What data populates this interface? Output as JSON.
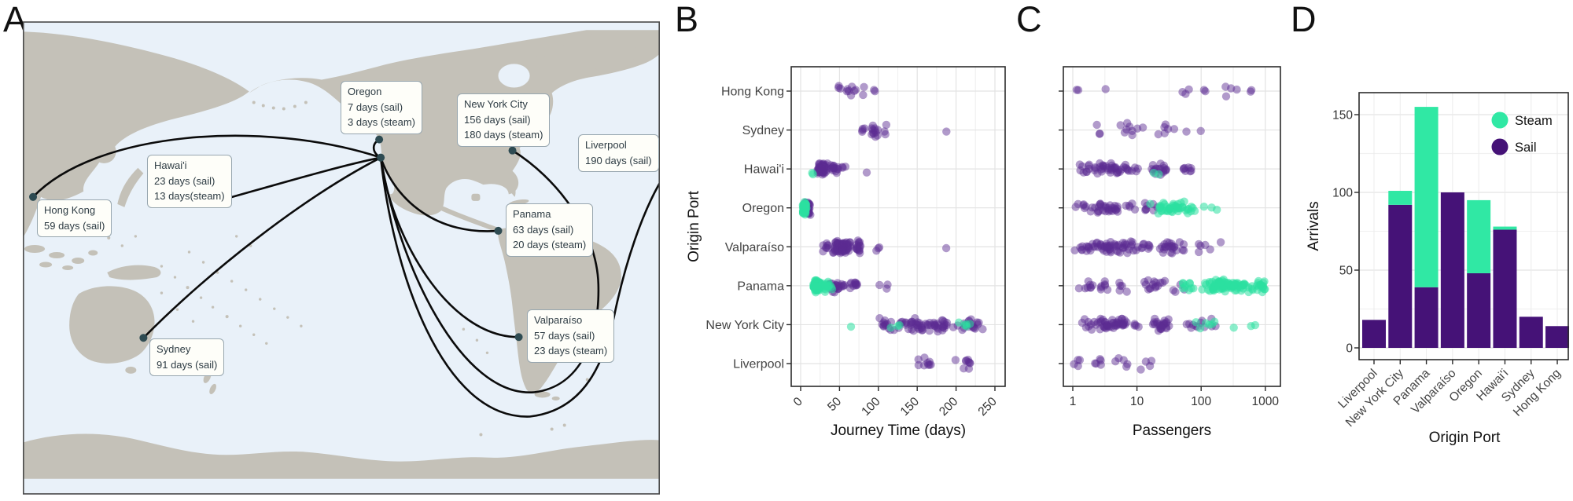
{
  "panels": {
    "a": "A",
    "b": "B",
    "c": "C",
    "d": "D"
  },
  "colors": {
    "sail": "#451277",
    "steam": "#30E8A4",
    "sail_point": "#5B2C92",
    "steam_point": "#2BE0A0",
    "ocean": "#E9F1F9",
    "land": "#C4C1B8",
    "route": "#0B0B0B",
    "port_dot": "#2E4B52",
    "frame": "#2B2B2B",
    "grid_major": "#E3E3E3",
    "grid_minor": "#F1F1F1",
    "text": "#333333"
  },
  "map": {
    "ports": [
      {
        "id": "oregon",
        "name": "Oregon",
        "line1": "7 days (sail)",
        "line2": "3 days (steam)"
      },
      {
        "id": "new-york-city",
        "name": "New York City",
        "line1": "156 days (sail)",
        "line2": "180 days (steam)"
      },
      {
        "id": "liverpool",
        "name": "Liverpool",
        "line1": "190 days (sail)"
      },
      {
        "id": "hawaii",
        "name": "Hawai'i",
        "line1": "23 days (sail)",
        "line2": "13 days(steam)"
      },
      {
        "id": "hong-kong",
        "name": "Hong Kong",
        "line1": "59 days (sail)"
      },
      {
        "id": "panama",
        "name": "Panama",
        "line1": "63 days (sail)",
        "line2": "20 days (steam)"
      },
      {
        "id": "valparaiso",
        "name": "Valparaíso",
        "line1": "57 days (sail)",
        "line2": "23 days (steam)"
      },
      {
        "id": "sydney",
        "name": "Sydney",
        "line1": "91 days (sail)"
      }
    ]
  },
  "chart_data": [
    {
      "id": "B",
      "type": "scatter",
      "subtype": "jitter-strip",
      "xlabel": "Journey Time (days)",
      "ylabel": "Origin Port",
      "xscale": "linear",
      "xticks": [
        0,
        50,
        100,
        150,
        200,
        250
      ],
      "xlim": [
        -12,
        263
      ],
      "categories": [
        "Hong Kong",
        "Sydney",
        "Hawai'i",
        "Oregon",
        "Valparaíso",
        "Panama",
        "New York City",
        "Liverpool"
      ],
      "legend_position": "none",
      "grid": true,
      "series": [
        {
          "name": "Sail",
          "clusters": {
            "Hong Kong": [
              [
                3,
                45,
                55
              ],
              [
                7,
                55,
                72
              ],
              [
                2,
                72,
                82
              ],
              [
                2,
                92,
                100
              ]
            ],
            "Sydney": [
              [
                4,
                75,
                85
              ],
              [
                12,
                85,
                105
              ],
              [
                3,
                105,
                112
              ],
              [
                1,
                187,
                189
              ]
            ],
            "Hawai'i": [
              [
                58,
                20,
                36
              ],
              [
                14,
                36,
                50
              ],
              [
                3,
                50,
                60
              ],
              [
                1,
                84,
                86
              ]
            ],
            "Oregon": [
              [
                48,
                4,
                13
              ]
            ],
            "Valparaíso": [
              [
                8,
                28,
                38
              ],
              [
                72,
                38,
                68
              ],
              [
                16,
                68,
                80
              ],
              [
                3,
                95,
                107
              ],
              [
                1,
                186,
                188
              ]
            ],
            "Panama": [
              [
                25,
                32,
                60
              ],
              [
                11,
                60,
                78
              ],
              [
                3,
                100,
                116
              ]
            ],
            "New York City": [
              [
                12,
                98,
                118
              ],
              [
                58,
                118,
                200
              ],
              [
                22,
                200,
                235
              ]
            ],
            "Liverpool": [
              [
                9,
                148,
                178
              ],
              [
                9,
                195,
                228
              ]
            ]
          }
        },
        {
          "name": "Steam",
          "clusters": {
            "Hawai'i": [
              [
                2,
                12,
                18
              ]
            ],
            "Oregon": [
              [
                47,
                2,
                8
              ]
            ],
            "Panama": [
              [
                100,
                16,
                26
              ],
              [
                16,
                26,
                45
              ]
            ],
            "New York City": [
              [
                1,
                64,
                66
              ],
              [
                3,
                115,
                130
              ],
              [
                5,
                190,
                235
              ]
            ]
          }
        }
      ]
    },
    {
      "id": "C",
      "type": "scatter",
      "subtype": "jitter-strip",
      "xlabel": "Passengers",
      "ylabel": "",
      "xscale": "log10",
      "xticks": [
        1,
        10,
        100,
        1000
      ],
      "xlim": [
        0.7,
        1400
      ],
      "categories": [
        "Hong Kong",
        "Sydney",
        "Hawai'i",
        "Oregon",
        "Valparaíso",
        "Panama",
        "New York City",
        "Liverpool"
      ],
      "legend_position": "none",
      "grid": true,
      "series": [
        {
          "name": "Sail",
          "clusters": {
            "Hong Kong": [
              [
                2,
                1,
                1.3
              ],
              [
                1,
                3,
                3.5
              ],
              [
                3,
                40,
                75
              ],
              [
                2,
                100,
                140
              ],
              [
                4,
                200,
                550
              ],
              [
                2,
                550,
                750
              ]
            ],
            "Sydney": [
              [
                3,
                2,
                3
              ],
              [
                9,
                4,
                15
              ],
              [
                6,
                15,
                40
              ],
              [
                1,
                55,
                70
              ],
              [
                1,
                90,
                110
              ]
            ],
            "Hawai'i": [
              [
                50,
                1,
                15
              ],
              [
                18,
                15,
                40
              ],
              [
                8,
                40,
                100
              ]
            ],
            "Oregon": [
              [
                40,
                1,
                12
              ],
              [
                8,
                12,
                25
              ]
            ],
            "Valparaíso": [
              [
                70,
                1,
                20
              ],
              [
                24,
                20,
                60
              ],
              [
                5,
                60,
                140
              ],
              [
                1,
                180,
                210
              ]
            ],
            "Panama": [
              [
                20,
                1,
                10
              ],
              [
                15,
                10,
                30
              ],
              [
                4,
                30,
                60
              ]
            ],
            "New York City": [
              [
                55,
                1,
                15
              ],
              [
                25,
                15,
                35
              ],
              [
                9,
                40,
                120
              ],
              [
                3,
                130,
                200
              ]
            ],
            "Liverpool": [
              [
                4,
                1,
                1.4
              ],
              [
                5,
                2,
                3.5
              ],
              [
                9,
                3.5,
                20
              ]
            ]
          }
        },
        {
          "name": "Steam",
          "clusters": {
            "Hawai'i": [
              [
                2,
                12,
                30
              ]
            ],
            "Oregon": [
              [
                44,
                15,
                90
              ],
              [
                3,
                90,
                220
              ]
            ],
            "Panama": [
              [
                10,
                40,
                90
              ],
              [
                90,
                90,
                700
              ],
              [
                16,
                700,
                1050
              ]
            ],
            "New York City": [
              [
                6,
                60,
                250
              ],
              [
                3,
                300,
                850
              ]
            ]
          }
        }
      ]
    },
    {
      "id": "D",
      "type": "bar",
      "stacked": true,
      "xlabel": "Origin Port",
      "ylabel": "Arrivals",
      "yticks": [
        0,
        50,
        100,
        150
      ],
      "ylim": [
        0,
        164
      ],
      "categories": [
        "Liverpool",
        "New York City",
        "Panama",
        "Valparaíso",
        "Oregon",
        "Hawai'i",
        "Sydney",
        "Hong Kong"
      ],
      "series": [
        {
          "name": "Sail",
          "values": [
            18,
            92,
            39,
            100,
            48,
            76,
            20,
            14
          ]
        },
        {
          "name": "Steam",
          "values": [
            0,
            9,
            116,
            0,
            47,
            2,
            0,
            0
          ]
        }
      ],
      "totals": [
        18,
        101,
        155,
        100,
        95,
        78,
        20,
        14
      ],
      "legend": [
        "Steam",
        "Sail"
      ],
      "legend_position": "top-right",
      "grid": true
    }
  ]
}
